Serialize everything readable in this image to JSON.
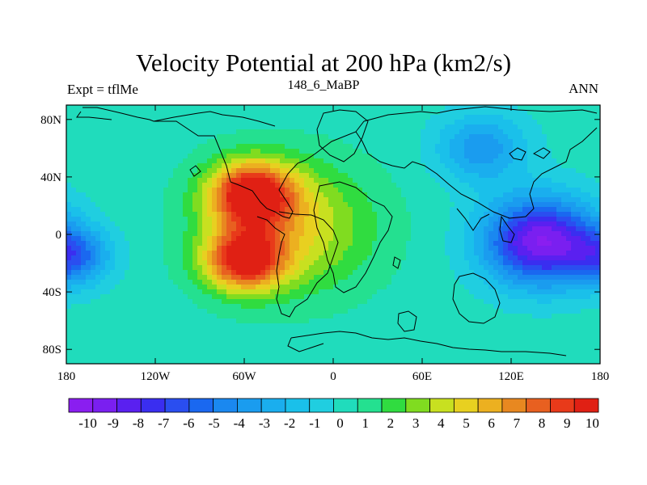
{
  "chart_data": {
    "type": "heatmap",
    "title": "Velocity Potential at 200 hPa (km2/s)",
    "left_label": "Expt = tflMe",
    "center_label": "148_6_MaBP",
    "right_label": "ANN",
    "x_ticks": [
      {
        "lon": -180,
        "label": "180"
      },
      {
        "lon": -120,
        "label": "120W"
      },
      {
        "lon": -60,
        "label": "60W"
      },
      {
        "lon": 0,
        "label": "0"
      },
      {
        "lon": 60,
        "label": "60E"
      },
      {
        "lon": 120,
        "label": "120E"
      },
      {
        "lon": 180,
        "label": "180"
      }
    ],
    "y_ticks": [
      {
        "lat": 80,
        "label": "80N"
      },
      {
        "lat": 40,
        "label": "40N"
      },
      {
        "lat": 0,
        "label": "0"
      },
      {
        "lat": -40,
        "label": "40S"
      },
      {
        "lat": -80,
        "label": "80S"
      }
    ],
    "xlim": [
      -180,
      180
    ],
    "ylim": [
      -90,
      90
    ],
    "colorbar_labels": [
      "-10",
      "-9",
      "-8",
      "-7",
      "-6",
      "-5",
      "-4",
      "-3",
      "-2",
      "-1",
      "0",
      "1",
      "2",
      "3",
      "4",
      "5",
      "6",
      "7",
      "8",
      "9",
      "10"
    ],
    "colorbar_colors": [
      "#8a1ef0",
      "#7a1ff0",
      "#5a20f0",
      "#3a2ef0",
      "#2a4ef0",
      "#1a68f0",
      "#1a88f0",
      "#1a9cef",
      "#1aaeee",
      "#1ac0ea",
      "#20cee0",
      "#20dcbc",
      "#24e090",
      "#30dc40",
      "#80dc20",
      "#c8e020",
      "#e8d020",
      "#ecb020",
      "#e88820",
      "#e86020",
      "#e83a1a",
      "#e02014"
    ],
    "field_centers": [
      {
        "lon": -55,
        "lat": 28,
        "value": 9.5,
        "spread": 28
      },
      {
        "lon": -60,
        "lat": -18,
        "value": 9.0,
        "spread": 26
      },
      {
        "lon": -30,
        "lat": 5,
        "value": 4.5,
        "spread": 55
      },
      {
        "lon": 140,
        "lat": -5,
        "value": -10.0,
        "spread": 38
      },
      {
        "lon": -175,
        "lat": -15,
        "value": -5.0,
        "spread": 25
      },
      {
        "lon": 100,
        "lat": 60,
        "value": -4.0,
        "spread": 30
      }
    ]
  }
}
